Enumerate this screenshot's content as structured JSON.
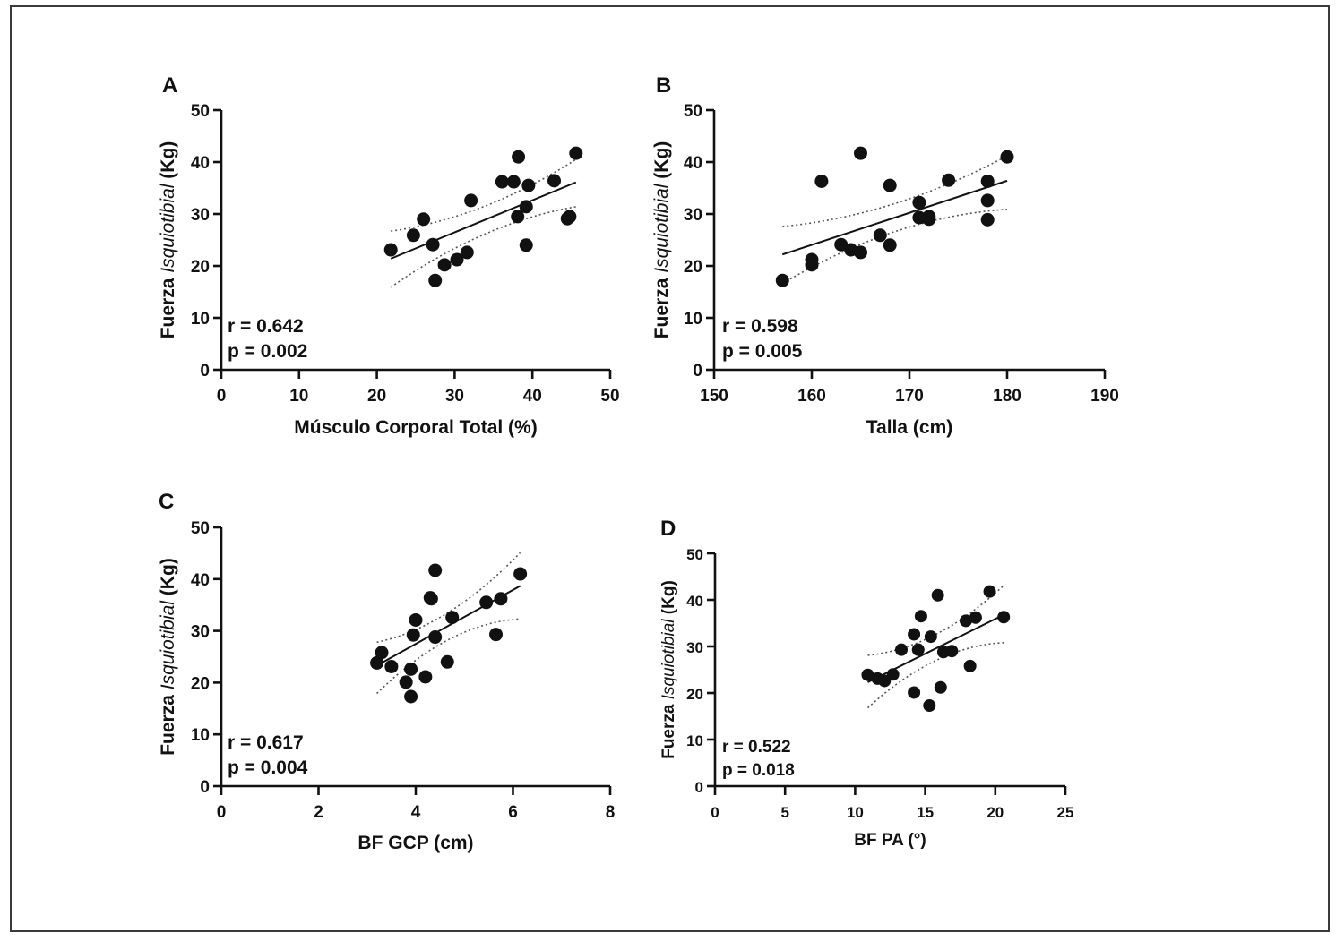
{
  "figure": {
    "ylabel_parts": [
      "Fuerza ",
      "Isquiotibial",
      " (Kg)"
    ]
  },
  "chart_data": [
    {
      "panel": "A",
      "type": "scatter",
      "title": "",
      "xlabel": "Músculo Corporal Total (%)",
      "ylabel": "Fuerza Isquiotibial (Kg)",
      "xlim": [
        0,
        50
      ],
      "ylim": [
        0,
        50
      ],
      "xticks": [
        0,
        10,
        20,
        30,
        40,
        50
      ],
      "yticks": [
        0,
        10,
        20,
        30,
        40,
        50
      ],
      "grid": false,
      "stats": {
        "r": "r = 0.642",
        "p": "p = 0.002"
      },
      "points": [
        [
          21.8,
          23.1
        ],
        [
          24.7,
          25.9
        ],
        [
          26.0,
          29.0
        ],
        [
          27.2,
          24.1
        ],
        [
          27.5,
          17.2
        ],
        [
          28.7,
          20.2
        ],
        [
          30.3,
          21.2
        ],
        [
          31.6,
          22.6
        ],
        [
          32.1,
          32.6
        ],
        [
          36.1,
          36.2
        ],
        [
          37.6,
          36.2
        ],
        [
          38.2,
          41.0
        ],
        [
          38.1,
          29.5
        ],
        [
          39.2,
          31.4
        ],
        [
          39.5,
          35.5
        ],
        [
          39.2,
          24.0
        ],
        [
          42.8,
          36.4
        ],
        [
          44.5,
          29.1
        ],
        [
          44.8,
          29.5
        ],
        [
          45.6,
          41.7
        ]
      ],
      "regression": [
        [
          21.8,
          21.4
        ],
        [
          45.6,
          36.1
        ]
      ],
      "ci_band": {
        "x": [
          21.8,
          33.7,
          45.6
        ],
        "lower": [
          15.9,
          26.0,
          31.4
        ],
        "upper": [
          26.7,
          31.4,
          40.5
        ]
      }
    },
    {
      "panel": "B",
      "type": "scatter",
      "title": "",
      "xlabel": "Talla (cm)",
      "ylabel": "Fuerza Isquiotibial (Kg)",
      "xlim": [
        150,
        190
      ],
      "ylim": [
        0,
        50
      ],
      "xticks": [
        150,
        160,
        170,
        180,
        190
      ],
      "yticks": [
        0,
        10,
        20,
        30,
        40,
        50
      ],
      "grid": false,
      "stats": {
        "r": "r = 0.598",
        "p": "p = 0.005"
      },
      "points": [
        [
          157,
          17.2
        ],
        [
          160,
          20.2
        ],
        [
          160,
          21.2
        ],
        [
          161,
          36.3
        ],
        [
          163,
          24.1
        ],
        [
          164,
          23.1
        ],
        [
          165,
          22.6
        ],
        [
          165,
          41.7
        ],
        [
          167,
          25.9
        ],
        [
          168,
          35.5
        ],
        [
          168,
          24.0
        ],
        [
          171,
          32.2
        ],
        [
          171,
          29.3
        ],
        [
          172,
          29.0
        ],
        [
          172,
          29.5
        ],
        [
          174,
          36.5
        ],
        [
          178,
          36.3
        ],
        [
          178,
          32.6
        ],
        [
          178,
          28.9
        ],
        [
          180,
          41.0
        ]
      ],
      "regression": [
        [
          157,
          22.2
        ],
        [
          180,
          36.4
        ]
      ],
      "ci_band": {
        "x": [
          157,
          168.5,
          180
        ],
        "lower": [
          16.6,
          26.6,
          30.9
        ],
        "upper": [
          27.6,
          32.0,
          41.2
        ]
      }
    },
    {
      "panel": "C",
      "type": "scatter",
      "title": "",
      "xlabel": "BF GCP (cm)",
      "ylabel": "Fuerza Isquiotibial (Kg)",
      "xlim": [
        0,
        8
      ],
      "ylim": [
        0,
        50
      ],
      "xticks": [
        0,
        2,
        4,
        6,
        8
      ],
      "yticks": [
        0,
        10,
        20,
        30,
        40,
        50
      ],
      "grid": false,
      "stats": {
        "r": "r = 0.617",
        "p": "p = 0.004"
      },
      "points": [
        [
          3.2,
          23.8
        ],
        [
          3.3,
          25.8
        ],
        [
          3.5,
          23.1
        ],
        [
          3.8,
          20.1
        ],
        [
          3.9,
          17.3
        ],
        [
          3.9,
          22.6
        ],
        [
          3.95,
          29.2
        ],
        [
          4.0,
          32.1
        ],
        [
          4.3,
          36.4
        ],
        [
          4.32,
          36.2
        ],
        [
          4.4,
          41.7
        ],
        [
          4.4,
          28.8
        ],
        [
          4.2,
          21.1
        ],
        [
          4.65,
          24.0
        ],
        [
          4.75,
          32.6
        ],
        [
          5.45,
          35.5
        ],
        [
          5.65,
          29.3
        ],
        [
          5.75,
          36.2
        ],
        [
          6.15,
          41.0
        ]
      ],
      "regression": [
        [
          3.2,
          23.3
        ],
        [
          6.15,
          38.7
        ]
      ],
      "ci_band": {
        "x": [
          3.2,
          4.5,
          6.15
        ],
        "lower": [
          17.9,
          27.4,
          32.3
        ],
        "upper": [
          27.8,
          32.6,
          45.1
        ]
      }
    },
    {
      "panel": "D",
      "type": "scatter",
      "title": "",
      "xlabel": "BF PA (°)",
      "ylabel": "Fuerza Isquiotibial (Kg)",
      "xlim": [
        0,
        25
      ],
      "ylim": [
        0,
        50
      ],
      "xticks": [
        0,
        5,
        10,
        15,
        20,
        25
      ],
      "yticks": [
        0,
        10,
        20,
        30,
        40,
        50
      ],
      "grid": false,
      "stats": {
        "r": "r = 0.522",
        "p": "p = 0.018"
      },
      "points": [
        [
          10.9,
          23.9
        ],
        [
          11.6,
          23.1
        ],
        [
          12.1,
          22.6
        ],
        [
          12.7,
          24.0
        ],
        [
          13.3,
          29.3
        ],
        [
          14.2,
          32.6
        ],
        [
          14.2,
          20.1
        ],
        [
          14.5,
          29.3
        ],
        [
          14.7,
          36.5
        ],
        [
          15.3,
          17.3
        ],
        [
          15.4,
          32.1
        ],
        [
          15.9,
          41.0
        ],
        [
          16.1,
          21.2
        ],
        [
          16.3,
          28.8
        ],
        [
          16.9,
          29.0
        ],
        [
          17.9,
          35.5
        ],
        [
          18.2,
          25.8
        ],
        [
          18.6,
          36.2
        ],
        [
          19.6,
          41.8
        ],
        [
          20.6,
          36.3
        ]
      ],
      "regression": [
        [
          10.9,
          22.3
        ],
        [
          20.6,
          36.8
        ]
      ],
      "ci_band": {
        "x": [
          10.9,
          15.5,
          20.6
        ],
        "lower": [
          16.8,
          26.6,
          30.8
        ],
        "upper": [
          28.1,
          32.2,
          43.1
        ]
      }
    }
  ]
}
